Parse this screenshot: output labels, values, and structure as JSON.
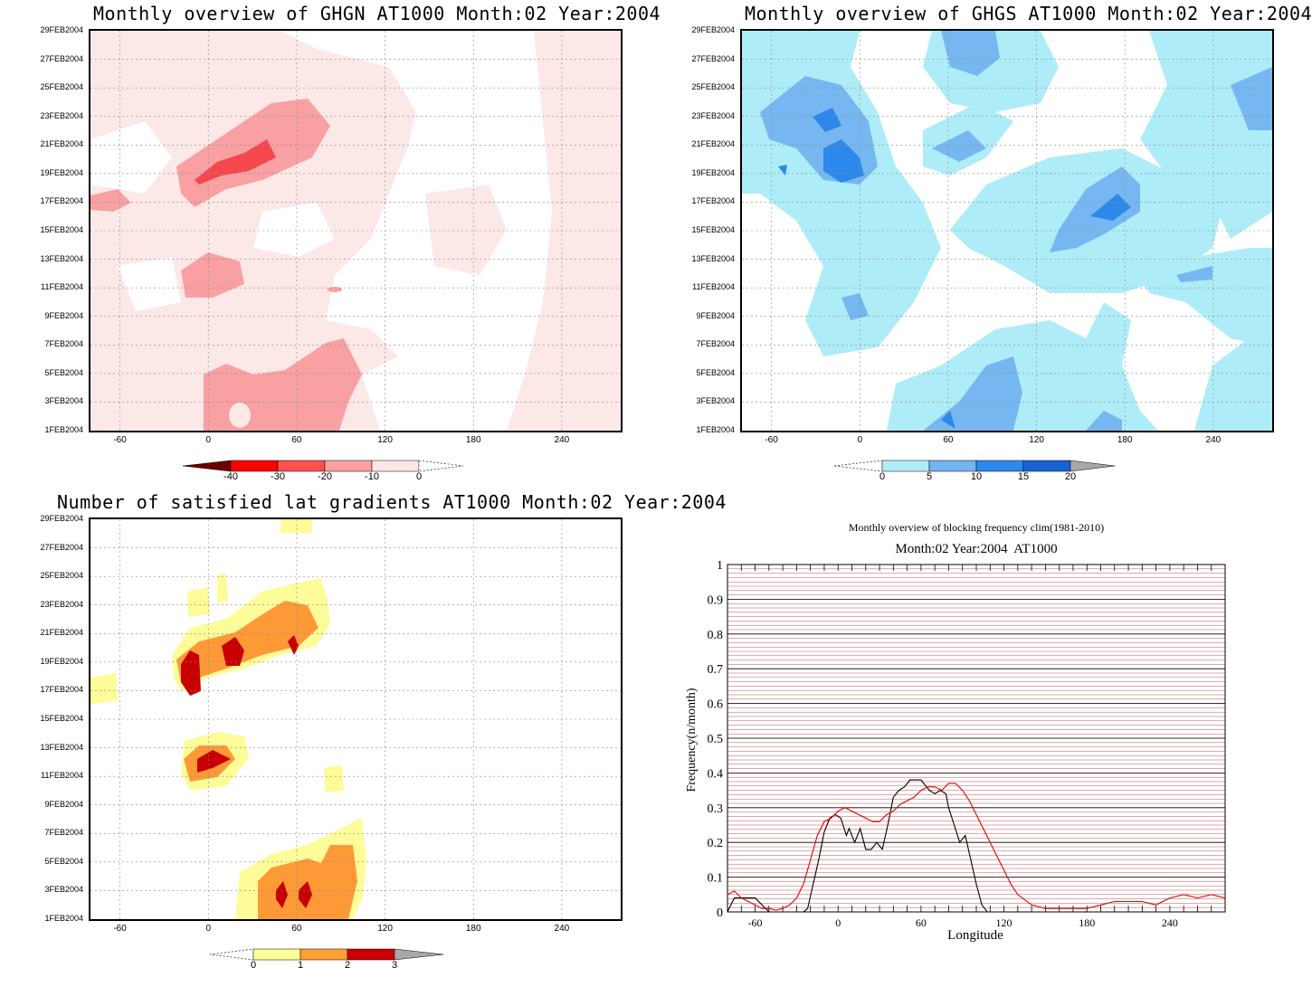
{
  "chart_data": [
    {
      "type": "heatmap",
      "title": "Monthly overview of GHGN AT1000 Month:02 Year:2004",
      "y_ticks": [
        "29FEB2004",
        "27FEB2004",
        "25FEB2004",
        "23FEB2004",
        "21FEB2004",
        "19FEB2004",
        "17FEB2004",
        "15FEB2004",
        "13FEB2004",
        "11FEB2004",
        "9FEB2004",
        "7FEB2004",
        "5FEB2004",
        "3FEB2004",
        "1FEB2004"
      ],
      "x_ticks": [
        "-60",
        "0",
        "60",
        "120",
        "180",
        "240"
      ],
      "xlim": [
        -80,
        280
      ],
      "colorbar": {
        "labels": [
          "-40",
          "-30",
          "-20",
          "-10",
          "0"
        ],
        "colors": [
          "#6b0000",
          "#ff0000",
          "#ff5050",
          "#ffa0a0",
          "#ffe6e6"
        ]
      },
      "colors": {
        "base": "#fde8e8",
        "mid": "#f9a0a3",
        "strong": "#f5484d"
      }
    },
    {
      "type": "heatmap",
      "title": "Monthly overview of GHGS AT1000 Month:02 Year:2004",
      "y_ticks": [
        "29FEB2004",
        "27FEB2004",
        "25FEB2004",
        "23FEB2004",
        "21FEB2004",
        "19FEB2004",
        "17FEB2004",
        "15FEB2004",
        "13FEB2004",
        "11FEB2004",
        "9FEB2004",
        "7FEB2004",
        "5FEB2004",
        "3FEB2004",
        "1FEB2004"
      ],
      "x_ticks": [
        "-60",
        "0",
        "60",
        "120",
        "180",
        "240"
      ],
      "xlim": [
        -80,
        280
      ],
      "colorbar": {
        "labels": [
          "0",
          "5",
          "10",
          "15",
          "20"
        ],
        "colors": [
          "#b0eef7",
          "#74b4f0",
          "#2b8aec",
          "#1763d4",
          "#a8a8a8"
        ]
      },
      "colors": {
        "light": "#aeedf8",
        "mid": "#77b7f1",
        "strong": "#2d88eb"
      }
    },
    {
      "type": "heatmap",
      "title": "Number of satisfied lat gradients AT1000 Month:02 Year:2004",
      "y_ticks": [
        "29FEB2004",
        "27FEB2004",
        "25FEB2004",
        "23FEB2004",
        "21FEB2004",
        "19FEB2004",
        "17FEB2004",
        "15FEB2004",
        "13FEB2004",
        "11FEB2004",
        "9FEB2004",
        "7FEB2004",
        "5FEB2004",
        "3FEB2004",
        "1FEB2004"
      ],
      "x_ticks": [
        "-60",
        "0",
        "60",
        "120",
        "180",
        "240"
      ],
      "xlim": [
        -80,
        280
      ],
      "colorbar": {
        "labels": [
          "0",
          "1",
          "2",
          "3"
        ],
        "colors": [
          "#ffff99",
          "#ffa033",
          "#cc0000",
          "#a8a8a8"
        ]
      },
      "colors": {
        "one": "#fefb99",
        "two": "#fd9a37",
        "three": "#c80000"
      }
    },
    {
      "type": "line",
      "title": "Monthly overview of blocking frequency clim(1981-2010)",
      "subtitle": "Month:02 Year:2004  AT1000",
      "xlabel": "Longitude",
      "ylabel": "Frequency(n/month)",
      "xlim": [
        -80,
        280
      ],
      "ylim": [
        0,
        1
      ],
      "x_ticks": [
        "-60",
        "0",
        "60",
        "120",
        "180",
        "240"
      ],
      "y_ticks": [
        "0",
        "0.1",
        "0.2",
        "0.3",
        "0.4",
        "0.5",
        "0.6",
        "0.7",
        "0.8",
        "0.9",
        "1"
      ],
      "series": [
        {
          "color": "#000000",
          "x": [
            -80,
            -75,
            -70,
            -60,
            -55,
            -50,
            -40,
            -30,
            -25,
            -22,
            -18,
            -14,
            -10,
            -6,
            -2,
            2,
            6,
            8,
            12,
            16,
            20,
            24,
            28,
            32,
            36,
            40,
            44,
            48,
            52,
            56,
            60,
            64,
            66,
            70,
            74,
            78,
            80,
            84,
            88,
            92,
            96,
            100,
            104,
            108,
            112,
            280
          ],
          "y": [
            0,
            0.04,
            0.04,
            0.04,
            0.02,
            0,
            0,
            0,
            0,
            0.01,
            0.08,
            0.15,
            0.23,
            0.27,
            0.28,
            0.27,
            0.22,
            0.24,
            0.2,
            0.24,
            0.18,
            0.18,
            0.2,
            0.18,
            0.25,
            0.33,
            0.35,
            0.36,
            0.38,
            0.38,
            0.38,
            0.36,
            0.35,
            0.34,
            0.35,
            0.34,
            0.3,
            0.25,
            0.2,
            0.22,
            0.15,
            0.08,
            0.02,
            0,
            0,
            0
          ]
        },
        {
          "color": "#e00000",
          "x": [
            -80,
            -75,
            -70,
            -65,
            -60,
            -55,
            -50,
            -45,
            -40,
            -35,
            -30,
            -25,
            -20,
            -15,
            -10,
            -5,
            0,
            5,
            10,
            15,
            20,
            25,
            30,
            35,
            40,
            45,
            50,
            55,
            60,
            65,
            70,
            75,
            80,
            85,
            90,
            95,
            100,
            105,
            110,
            115,
            120,
            125,
            130,
            140,
            150,
            160,
            170,
            180,
            190,
            200,
            210,
            220,
            230,
            240,
            250,
            260,
            270,
            280
          ],
          "y": [
            0.05,
            0.06,
            0.04,
            0.03,
            0.02,
            0.01,
            0.01,
            0.005,
            0.01,
            0.02,
            0.04,
            0.08,
            0.15,
            0.22,
            0.26,
            0.27,
            0.29,
            0.3,
            0.29,
            0.28,
            0.27,
            0.26,
            0.26,
            0.28,
            0.29,
            0.31,
            0.32,
            0.33,
            0.35,
            0.36,
            0.36,
            0.35,
            0.37,
            0.37,
            0.35,
            0.32,
            0.28,
            0.24,
            0.2,
            0.16,
            0.12,
            0.08,
            0.05,
            0.02,
            0.01,
            0.01,
            0.01,
            0.01,
            0.02,
            0.03,
            0.03,
            0.03,
            0.02,
            0.04,
            0.05,
            0.04,
            0.05,
            0.04
          ]
        }
      ]
    }
  ]
}
